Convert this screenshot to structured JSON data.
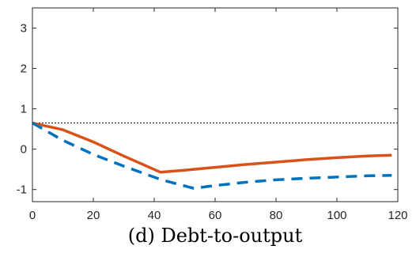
{
  "chart_data": {
    "type": "line",
    "caption": "(d) Debt-to-output",
    "xlim": [
      0,
      120
    ],
    "ylim": [
      -1.3,
      3.5
    ],
    "xticks": [
      0,
      20,
      40,
      60,
      80,
      100,
      120
    ],
    "yticks": [
      -1,
      0,
      1,
      2,
      3
    ],
    "grid": false,
    "reference_line": {
      "y": 0.65,
      "style": "dotted",
      "color": "#000000"
    },
    "series": [
      {
        "color": "#d95319",
        "style": "solid",
        "x": [
          0,
          10,
          20,
          30,
          42,
          50,
          60,
          70,
          80,
          90,
          100,
          110,
          118
        ],
        "y": [
          0.65,
          0.48,
          0.18,
          -0.17,
          -0.57,
          -0.52,
          -0.45,
          -0.38,
          -0.32,
          -0.26,
          -0.21,
          -0.17,
          -0.15
        ]
      },
      {
        "color": "#0072bd",
        "style": "dashed",
        "x": [
          0,
          10,
          20,
          30,
          42,
          53,
          60,
          70,
          80,
          90,
          100,
          110,
          118
        ],
        "y": [
          0.65,
          0.22,
          -0.13,
          -0.42,
          -0.75,
          -0.97,
          -0.9,
          -0.82,
          -0.76,
          -0.72,
          -0.69,
          -0.66,
          -0.65
        ]
      }
    ]
  }
}
